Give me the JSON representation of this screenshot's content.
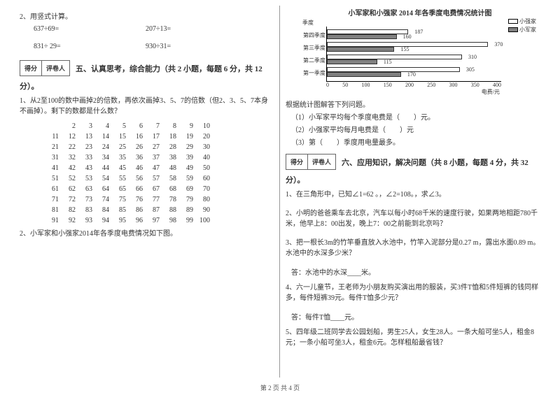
{
  "left": {
    "q2_title": "2、用竖式计算。",
    "calc": [
      {
        "a": "637÷69=",
        "b": "207÷13="
      },
      {
        "a": "831÷ 29=",
        "b": "930÷31="
      }
    ],
    "score_labels": {
      "score": "得分",
      "reviewer": "评卷人"
    },
    "section5_title": "五、认真思考，综合能力（共 2 小题，每题 6 分，共 12",
    "section5_suffix": "分）。",
    "q5_1": "1、从2至100的数中画掉2的倍数，再依次画掉3、5、7的倍数（但2、3、5、7本身不画掉）。剩下的数都是什么数？",
    "num_grid": {
      "rows": [
        [
          2,
          3,
          4,
          5,
          6,
          7,
          8,
          9,
          10
        ],
        [
          11,
          12,
          13,
          14,
          15,
          16,
          17,
          18,
          19,
          20
        ],
        [
          21,
          22,
          23,
          24,
          25,
          26,
          27,
          28,
          29,
          30
        ],
        [
          31,
          32,
          33,
          34,
          35,
          36,
          37,
          38,
          39,
          40
        ],
        [
          41,
          42,
          43,
          44,
          45,
          46,
          47,
          48,
          49,
          50
        ],
        [
          51,
          52,
          53,
          54,
          55,
          56,
          57,
          58,
          59,
          60
        ],
        [
          61,
          62,
          63,
          64,
          65,
          66,
          67,
          68,
          69,
          70
        ],
        [
          71,
          72,
          73,
          74,
          75,
          76,
          77,
          78,
          79,
          80
        ],
        [
          81,
          82,
          83,
          84,
          85,
          86,
          87,
          88,
          89,
          90
        ],
        [
          91,
          92,
          93,
          94,
          95,
          96,
          97,
          98,
          99,
          100
        ]
      ]
    },
    "q5_2": "2、小军家和小强家2014年各季度电费情况如下图。"
  },
  "right": {
    "chart": {
      "title": "小军家和小强家 2014 年各季度电费情况统计图",
      "legend": {
        "a": "小强家",
        "b": "小军家"
      },
      "y_label": "季度",
      "groups": [
        {
          "label": "第四季度",
          "xiaoqiang": 187,
          "xiaojun": 160
        },
        {
          "label": "第三季度",
          "xiaoqiang": 370,
          "xiaojun": 155
        },
        {
          "label": "第二季度",
          "xiaoqiang": 310,
          "xiaojun": 115
        },
        {
          "label": "第一季度",
          "xiaoqiang": 305,
          "xiaojun": 170
        }
      ],
      "x_ticks": [
        "0",
        "50",
        "100",
        "150",
        "200",
        "250",
        "300",
        "350",
        "400"
      ],
      "x_unit": "电费/元",
      "max": 400
    },
    "chart_q_title": "根据统计图解答下列问题。",
    "chart_q1": "（1）小军家平均每个季度电费是（　　）元。",
    "chart_q2": "（2）小强家平均每月电费是（　　）元",
    "chart_q3": "（3）第（　　）季度用电量最多。",
    "score_labels": {
      "score": "得分",
      "reviewer": "评卷人"
    },
    "section6_title": "六、应用知识，解决问题（共 8 小题，每题 4 分，共 32",
    "section6_suffix": "分）。",
    "q6_1": "1、在三角形中，已知∠1=62 。，∠2=108。，求∠3。",
    "q6_2": "2、小明的爸爸乘车去北京，汽车以每小时68千米的速度行驶，如果两地相距780千米，他早上8：00出发，晚上7：00之前能到北京吗？",
    "q6_3": "3、把一根长3m的竹竿垂直放入水池中，竹竿入泥部分是0.27 m，露出水面0.89 m。水池中的水深多少米？",
    "q6_3_ans": "答：水池中的水深____米。",
    "q6_4": "4、六一儿童节，王老师为小朋友购买演出用的服装，买3件T恤和5件短裤的钱同样多，每件短裤39元。每件T恤多少元？",
    "q6_4_ans": "答：每件T恤____元。",
    "q6_5": "5、四年级二班同学去公园划船，男生25人，女生28人。一条大船可坐5人，租金8元；一条小船可坐3人，租金6元。怎样租船最省钱？"
  },
  "footer": "第 2 页 共 4 页"
}
